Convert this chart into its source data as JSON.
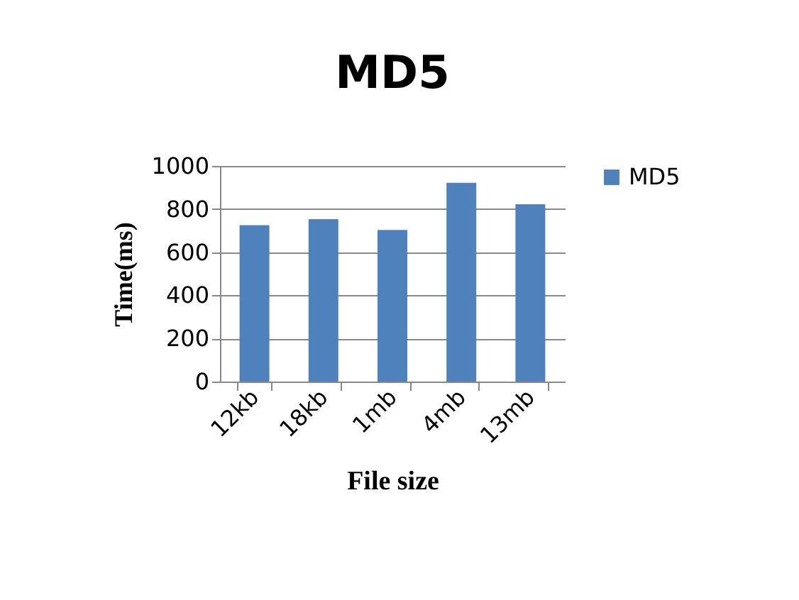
{
  "chart_data": {
    "type": "bar",
    "title": "MD5",
    "xlabel": "File size",
    "ylabel": "Time(ms)",
    "categories": [
      "12kb",
      "18kb",
      "1mb",
      "4mb",
      "13mb"
    ],
    "series": [
      {
        "name": "MD5",
        "color": "#4f81bd",
        "values": [
          725,
          753,
          703,
          922,
          822
        ]
      }
    ],
    "ylim": [
      0,
      1000
    ],
    "yticks": [
      0,
      200,
      400,
      600,
      800,
      1000
    ],
    "grid": "y",
    "legend": "right"
  }
}
